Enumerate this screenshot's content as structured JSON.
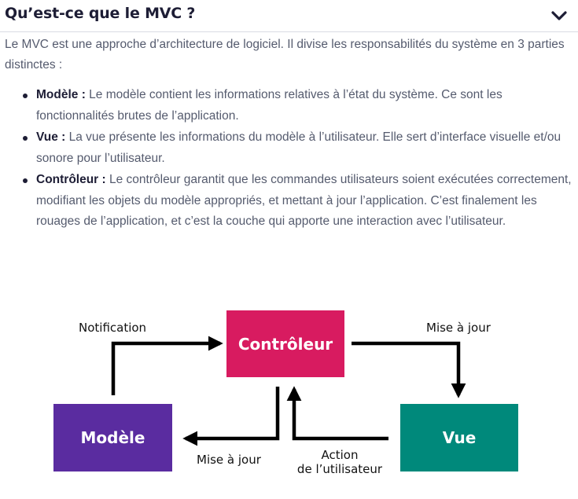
{
  "header": {
    "title": "Qu’est-ce que le MVC ?",
    "toggle_icon": "chevron-down-icon"
  },
  "intro": "Le MVC est une approche d’architecture de logiciel. Il divise les responsabilités du système en 3 parties distinctes :",
  "items": [
    {
      "term": "Modèle :",
      "text": " Le modèle contient les informations relatives à l’état du système. Ce sont les fonctionnalités brutes de l’application."
    },
    {
      "term": "Vue :",
      "text": " La vue présente les informations du modèle à l’utilisateur. Elle sert d’interface visuelle et/ou sonore pour l’utilisateur."
    },
    {
      "term": "Contrôleur :",
      "text": " Le contrôleur garantit que les commandes utilisateurs soient exécutées correctement, modifiant les objets du modèle appropriés, et mettant à jour l’application. C’est finalement les rouages de l’application, et c’est la couche qui apporte une interaction avec l’utilisateur."
    }
  ],
  "diagram": {
    "nodes": {
      "controleur": "Contrôleur",
      "modele": "Modèle",
      "vue": "Vue"
    },
    "labels": {
      "notification": "Notification",
      "maj_vue": "Mise à jour",
      "maj_modele": "Mise à jour",
      "action_line1": "Action",
      "action_line2": "de l’utilisateur"
    },
    "colors": {
      "controleur": "#d81b60",
      "modele": "#5a2ca0",
      "vue": "#00897b",
      "arrow": "#000000"
    }
  }
}
